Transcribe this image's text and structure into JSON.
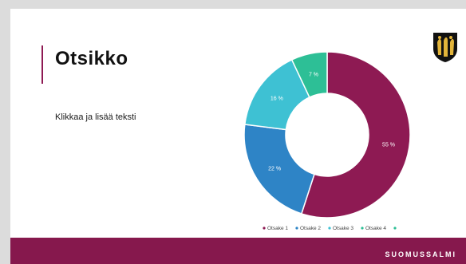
{
  "slide": {
    "title": "Otsikko",
    "body_text": "Klikkaa ja lisää teksti",
    "brand": "SUOMUSSALMI"
  },
  "colors": {
    "accent": "#8e1a53",
    "footer": "#86184d",
    "series": [
      "#8e1a53",
      "#2e84c6",
      "#3ec1d3",
      "#2dbf96"
    ]
  },
  "chart_data": {
    "type": "pie",
    "variant": "donut",
    "categories": [
      "Otsake 1",
      "Otsake 2",
      "Otsake 3",
      "Otsake 4"
    ],
    "values": [
      55,
      22,
      16,
      7
    ],
    "labels": [
      "55 %",
      "22 %",
      "16 %",
      "7 %"
    ],
    "legend_position": "bottom"
  }
}
